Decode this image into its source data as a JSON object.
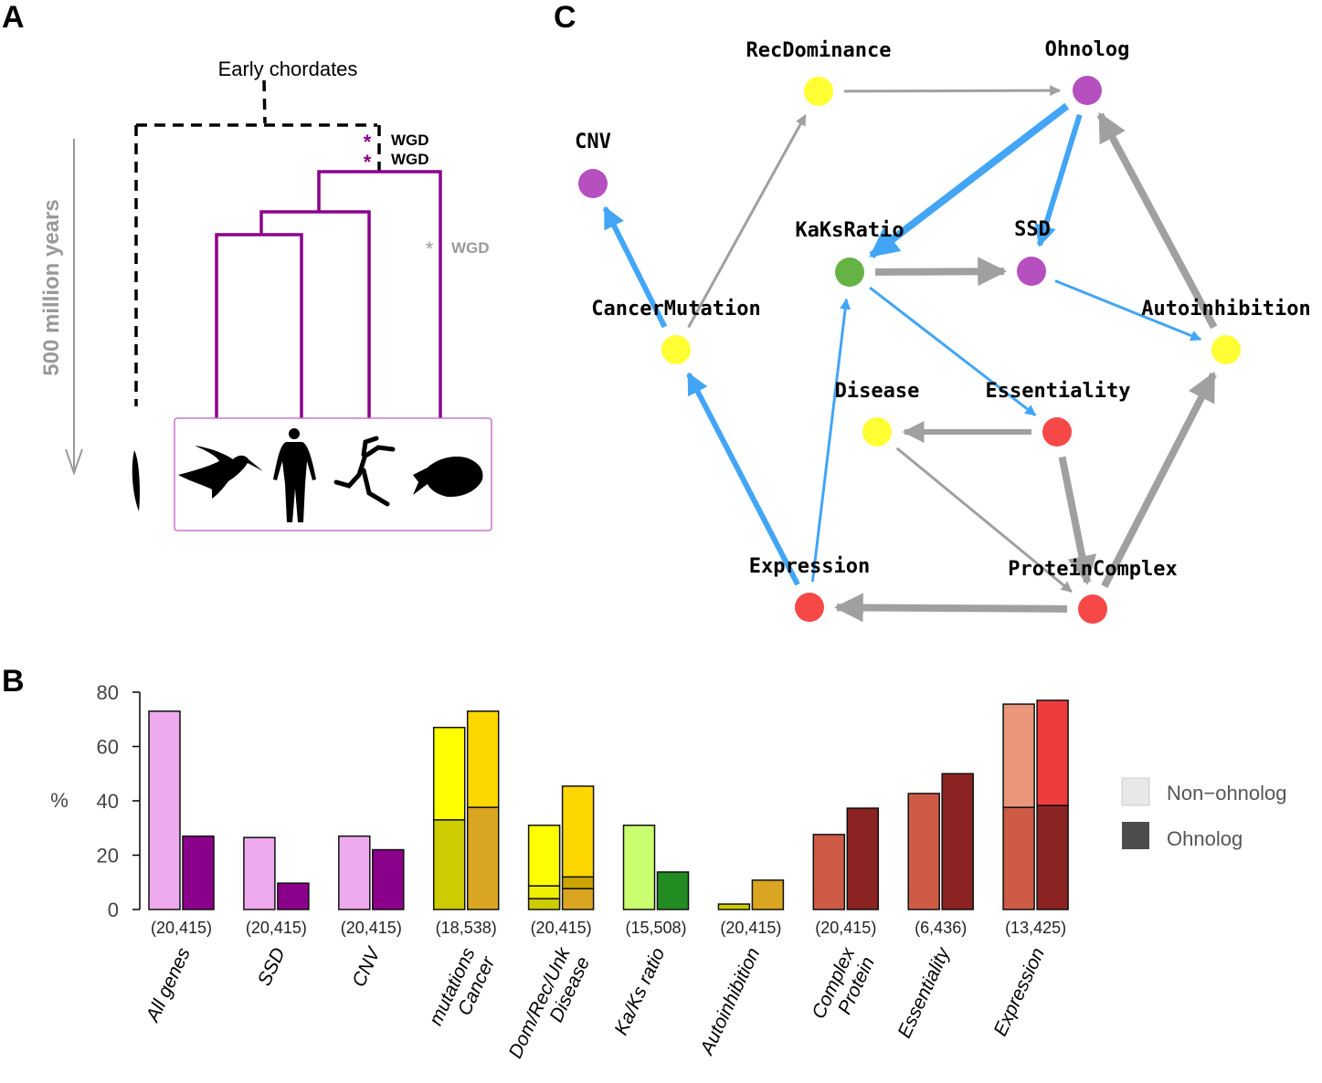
{
  "panels": {
    "a": "A",
    "b": "B",
    "c": "C"
  },
  "tree": {
    "root_label": "Early  chordates",
    "time_label": "500  million  years",
    "wgd_labels": [
      "WGD",
      "WGD",
      "WGD"
    ],
    "star": "*",
    "colors": {
      "vertebrate_branch": "#8b008b",
      "outgroup_branch": "#000000",
      "time_arrow": "#999999"
    },
    "silhouettes": [
      "amphioxus-icon",
      "hummingbird-icon",
      "human-icon",
      "frog-icon",
      "fish-icon"
    ]
  },
  "chart_data": {
    "type": "bar",
    "ylabel": "%",
    "ylim": [
      0,
      80
    ],
    "yticks": [
      0,
      20,
      40,
      60,
      80
    ],
    "grid": false,
    "legend": {
      "placement": "right",
      "entries": [
        {
          "label": "Non−ohnolog",
          "color": "#e8e8e8"
        },
        {
          "label": "Ohnolog",
          "color": "#4d4d4d"
        }
      ]
    },
    "categories": [
      {
        "label": [
          "All genes"
        ],
        "n": "(20,415)",
        "non_ohnolog": [
          {
            "value": 73,
            "color": "#eeaaee"
          }
        ],
        "ohnolog": [
          {
            "value": 27,
            "color": "#8b008b"
          }
        ]
      },
      {
        "label": [
          "SSD"
        ],
        "n": "(20,415)",
        "non_ohnolog": [
          {
            "value": 26.5,
            "color": "#eeaaee"
          }
        ],
        "ohnolog": [
          {
            "value": 9.7,
            "color": "#8b008b"
          }
        ]
      },
      {
        "label": [
          "CNV"
        ],
        "n": "(20,415)",
        "non_ohnolog": [
          {
            "value": 27,
            "color": "#eeaaee"
          }
        ],
        "ohnolog": [
          {
            "value": 22,
            "color": "#8b008b"
          }
        ]
      },
      {
        "label": [
          "Cancer",
          "mutations"
        ],
        "n": "(18,538)",
        "non_ohnolog": [
          {
            "value": 33,
            "color": "#cccc00"
          },
          {
            "value": 34,
            "color": "#ffff00"
          }
        ],
        "ohnolog": [
          {
            "value": 37.6,
            "color": "#daa520"
          },
          {
            "value": 35.4,
            "color": "#ffd700"
          }
        ]
      },
      {
        "label": [
          "Disease",
          "Dom/Rec/Unk"
        ],
        "n": "(20,415)",
        "non_ohnolog": [
          {
            "value": 4,
            "color": "#cccc00"
          },
          {
            "value": 4.7,
            "color": "#eeee00"
          },
          {
            "value": 22.3,
            "color": "#ffff00"
          }
        ],
        "ohnolog": [
          {
            "value": 7.7,
            "color": "#daa520"
          },
          {
            "value": 4.3,
            "color": "#cda500"
          },
          {
            "value": 33.4,
            "color": "#ffd700"
          }
        ]
      },
      {
        "label": [
          "Ka/Ks ratio"
        ],
        "n": "(15,508)",
        "non_ohnolog": [
          {
            "value": 31,
            "color": "#caff70"
          }
        ],
        "ohnolog": [
          {
            "value": 13.8,
            "color": "#228b22"
          }
        ]
      },
      {
        "label": [
          "Autoinhibition"
        ],
        "n": "(20,415)",
        "non_ohnolog": [
          {
            "value": 2,
            "color": "#cccc00"
          }
        ],
        "ohnolog": [
          {
            "value": 10.8,
            "color": "#daa520"
          }
        ]
      },
      {
        "label": [
          "Protein",
          "Complex"
        ],
        "n": "(20,415)",
        "non_ohnolog": [
          {
            "value": 27.6,
            "color": "#cd5b45"
          }
        ],
        "ohnolog": [
          {
            "value": 37.3,
            "color": "#8b2323"
          }
        ]
      },
      {
        "label": [
          "Essentiality"
        ],
        "n": "(6,436)",
        "non_ohnolog": [
          {
            "value": 42.7,
            "color": "#cd5b45"
          }
        ],
        "ohnolog": [
          {
            "value": 50,
            "color": "#8b2323"
          }
        ]
      },
      {
        "label": [
          "Expression"
        ],
        "n": "(13,425)",
        "non_ohnolog": [
          {
            "value": 37.6,
            "color": "#cd5b45"
          },
          {
            "value": 38,
            "color": "#e9967a"
          }
        ],
        "ohnolog": [
          {
            "value": 38.3,
            "color": "#8b2323"
          },
          {
            "value": 38.7,
            "color": "#ee3b3b"
          }
        ]
      }
    ]
  },
  "network": {
    "nodes": [
      {
        "id": "RecDominance",
        "label": "RecDominance",
        "color": "#ffff33"
      },
      {
        "id": "Ohnolog",
        "label": "Ohnolog",
        "color": "#b64fbf"
      },
      {
        "id": "CNV",
        "label": "CNV",
        "color": "#b64fbf"
      },
      {
        "id": "KaKsRatio",
        "label": "KaKsRatio",
        "color": "#66b245"
      },
      {
        "id": "SSD",
        "label": "SSD",
        "color": "#b64fbf"
      },
      {
        "id": "CancerMutation",
        "label": "CancerMutation",
        "color": "#ffff33"
      },
      {
        "id": "Autoinhibition",
        "label": "Autoinhibition",
        "color": "#ffff33"
      },
      {
        "id": "Disease",
        "label": "Disease",
        "color": "#ffff33"
      },
      {
        "id": "Essentiality",
        "label": "Essentiality",
        "color": "#f74848"
      },
      {
        "id": "Expression",
        "label": "Expression",
        "color": "#f74848"
      },
      {
        "id": "ProteinComplex",
        "label": "ProteinComplex",
        "color": "#f74848"
      }
    ],
    "edge_colors": {
      "blue": "#42a5f5",
      "gray": "#a0a0a0"
    },
    "edges": [
      {
        "from": "RecDominance",
        "to": "Ohnolog",
        "color": "gray",
        "weight": 1
      },
      {
        "from": "CancerMutation",
        "to": "RecDominance",
        "color": "gray",
        "weight": 1
      },
      {
        "from": "Ohnolog",
        "to": "KaKsRatio",
        "color": "blue",
        "weight": 3
      },
      {
        "from": "Ohnolog",
        "to": "SSD",
        "color": "blue",
        "weight": 2
      },
      {
        "from": "Autoinhibition",
        "to": "Ohnolog",
        "color": "gray",
        "weight": 3
      },
      {
        "from": "KaKsRatio",
        "to": "SSD",
        "color": "gray",
        "weight": 3
      },
      {
        "from": "SSD",
        "to": "Autoinhibition",
        "color": "blue",
        "weight": 1
      },
      {
        "from": "KaKsRatio",
        "to": "Essentiality",
        "color": "blue",
        "weight": 1
      },
      {
        "from": "CancerMutation",
        "to": "CNV",
        "color": "blue",
        "weight": 2
      },
      {
        "from": "Expression",
        "to": "CancerMutation",
        "color": "blue",
        "weight": 2
      },
      {
        "from": "Expression",
        "to": "KaKsRatio",
        "color": "blue",
        "weight": 1
      },
      {
        "from": "Essentiality",
        "to": "Disease",
        "color": "gray",
        "weight": 2
      },
      {
        "from": "Disease",
        "to": "ProteinComplex",
        "color": "gray",
        "weight": 1
      },
      {
        "from": "Essentiality",
        "to": "ProteinComplex",
        "color": "gray",
        "weight": 3
      },
      {
        "from": "ProteinComplex",
        "to": "Expression",
        "color": "gray",
        "weight": 3
      },
      {
        "from": "ProteinComplex",
        "to": "Autoinhibition",
        "color": "gray",
        "weight": 3
      }
    ]
  }
}
